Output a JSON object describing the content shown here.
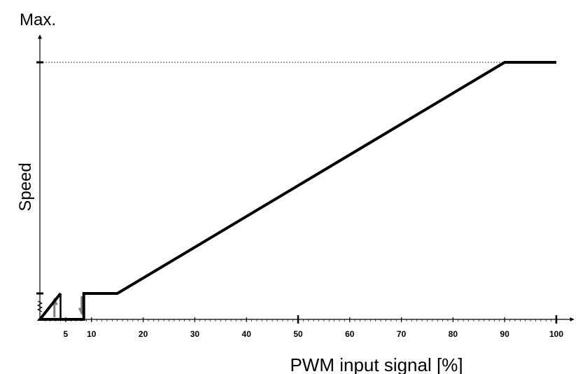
{
  "chart_data": {
    "type": "line",
    "title": "",
    "xlabel": "PWM input signal [%]",
    "ylabel": "Speed",
    "y_max_label": "Max.",
    "xlim": [
      0,
      100
    ],
    "ylim": [
      0,
      100
    ],
    "x_ticks": [
      5,
      10,
      20,
      30,
      40,
      50,
      60,
      70,
      80,
      90,
      100
    ],
    "series": [
      {
        "values": [
          {
            "x": 0,
            "y": 0
          },
          {
            "x": 8.5,
            "y": 0
          },
          {
            "x": 8.5,
            "y": 10
          },
          {
            "x": 15,
            "y": 10
          },
          {
            "x": 90,
            "y": 100
          },
          {
            "x": 100,
            "y": 100
          }
        ]
      }
    ],
    "hysteresis": {
      "on_x": 4,
      "off_x": 8.5,
      "low_y": 0,
      "high_y": 10
    },
    "max_reference_line": "dashed",
    "grid": false,
    "legend": "none"
  }
}
